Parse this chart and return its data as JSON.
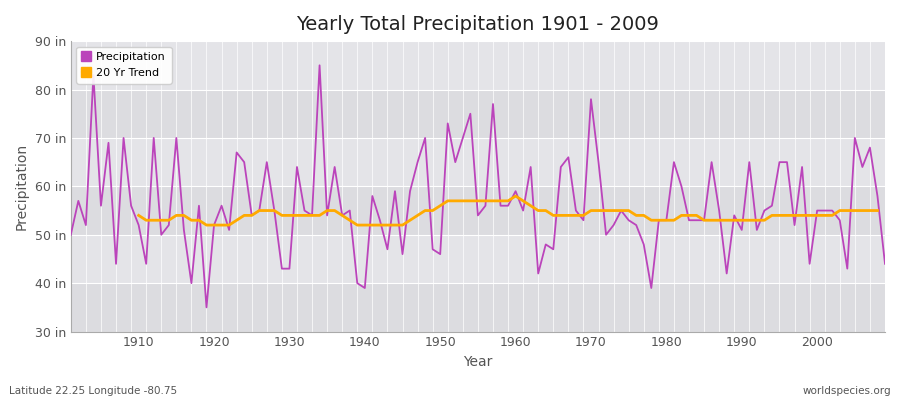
{
  "title": "Yearly Total Precipitation 1901 - 2009",
  "xlabel": "Year",
  "ylabel": "Precipitation",
  "xlim": [
    1901,
    2009
  ],
  "ylim": [
    30,
    90
  ],
  "yticks": [
    30,
    40,
    50,
    60,
    70,
    80,
    90
  ],
  "ytick_labels": [
    "30 in",
    "40 in",
    "50 in",
    "60 in",
    "70 in",
    "80 in",
    "90 in"
  ],
  "xticks": [
    1910,
    1920,
    1930,
    1940,
    1950,
    1960,
    1970,
    1980,
    1990,
    2000
  ],
  "bg_color": "#f0f0f0",
  "plot_bg_light": "#e8e8ec",
  "plot_bg_dark": "#dcdce0",
  "grid_color": "#ffffff",
  "precip_color": "#bb44bb",
  "trend_color": "#ffaa00",
  "subtitle": "Latitude 22.25 Longitude -80.75",
  "watermark": "worldspecies.org",
  "band_ranges": [
    [
      30,
      40
    ],
    [
      40,
      50
    ],
    [
      50,
      60
    ],
    [
      60,
      70
    ],
    [
      70,
      80
    ],
    [
      80,
      90
    ]
  ],
  "band_colors": [
    "#dcdce0",
    "#e4e4e8",
    "#dcdce0",
    "#e4e4e8",
    "#dcdce0",
    "#e4e4e8"
  ],
  "years": [
    1901,
    1902,
    1903,
    1904,
    1905,
    1906,
    1907,
    1908,
    1909,
    1910,
    1911,
    1912,
    1913,
    1914,
    1915,
    1916,
    1917,
    1918,
    1919,
    1920,
    1921,
    1922,
    1923,
    1924,
    1925,
    1926,
    1927,
    1928,
    1929,
    1930,
    1931,
    1932,
    1933,
    1934,
    1935,
    1936,
    1937,
    1938,
    1939,
    1940,
    1941,
    1942,
    1943,
    1944,
    1945,
    1946,
    1947,
    1948,
    1949,
    1950,
    1951,
    1952,
    1953,
    1954,
    1955,
    1956,
    1957,
    1958,
    1959,
    1960,
    1961,
    1962,
    1963,
    1964,
    1965,
    1966,
    1967,
    1968,
    1969,
    1970,
    1971,
    1972,
    1973,
    1974,
    1975,
    1976,
    1977,
    1978,
    1979,
    1980,
    1981,
    1982,
    1983,
    1984,
    1985,
    1986,
    1987,
    1988,
    1989,
    1990,
    1991,
    1992,
    1993,
    1994,
    1995,
    1996,
    1997,
    1998,
    1999,
    2000,
    2001,
    2002,
    2003,
    2004,
    2005,
    2006,
    2007,
    2008,
    2009
  ],
  "precip": [
    50,
    57,
    52,
    83,
    56,
    69,
    44,
    70,
    56,
    52,
    44,
    70,
    50,
    52,
    70,
    51,
    40,
    56,
    35,
    52,
    56,
    51,
    67,
    65,
    54,
    55,
    65,
    55,
    43,
    43,
    64,
    55,
    54,
    85,
    54,
    64,
    54,
    55,
    40,
    39,
    58,
    53,
    47,
    59,
    46,
    59,
    65,
    70,
    47,
    46,
    73,
    65,
    70,
    75,
    54,
    56,
    77,
    56,
    56,
    59,
    55,
    64,
    42,
    48,
    47,
    64,
    66,
    55,
    53,
    78,
    65,
    50,
    52,
    55,
    53,
    52,
    48,
    39,
    53,
    53,
    65,
    60,
    53,
    53,
    53,
    65,
    55,
    42,
    54,
    51,
    65,
    51,
    55,
    56,
    65,
    65,
    52,
    64,
    44,
    55,
    55,
    55,
    53,
    43,
    70,
    64,
    68,
    58,
    44
  ],
  "trend": [
    null,
    null,
    null,
    null,
    null,
    null,
    null,
    null,
    null,
    54,
    53,
    53,
    53,
    53,
    54,
    54,
    53,
    53,
    52,
    52,
    52,
    52,
    53,
    54,
    54,
    55,
    55,
    55,
    54,
    54,
    54,
    54,
    54,
    54,
    55,
    55,
    54,
    53,
    52,
    52,
    52,
    52,
    52,
    52,
    52,
    53,
    54,
    55,
    55,
    56,
    57,
    57,
    57,
    57,
    57,
    57,
    57,
    57,
    57,
    58,
    57,
    56,
    55,
    55,
    54,
    54,
    54,
    54,
    54,
    55,
    55,
    55,
    55,
    55,
    55,
    54,
    54,
    53,
    53,
    53,
    53,
    54,
    54,
    54,
    53,
    53,
    53,
    53,
    53,
    53,
    53,
    53,
    53,
    54,
    54,
    54,
    54,
    54,
    54,
    54,
    54,
    54,
    55,
    55,
    55,
    55,
    55,
    55,
    null
  ]
}
